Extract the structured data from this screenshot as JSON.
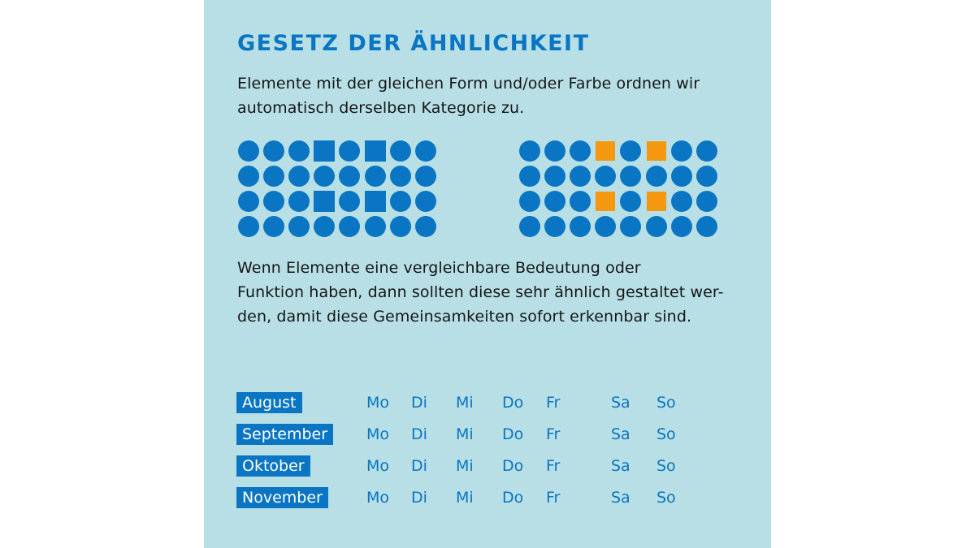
{
  "title": "Gesetz der Ähnlichkeit",
  "intro": {
    "line1": "Elemente mit der gleichen Form und/oder Farbe ordnen wir",
    "line2": "automatisch derselben Kategorie zu."
  },
  "colors": {
    "background": "#b7dfe5",
    "blue": "#0a75c2",
    "orange": "#f3980f",
    "text": "#161616"
  },
  "grids": [
    {
      "rows": [
        [
          {
            "shape": "circle",
            "color": "blue"
          },
          {
            "shape": "circle",
            "color": "blue"
          },
          {
            "shape": "circle",
            "color": "blue"
          },
          {
            "shape": "square",
            "color": "blue"
          },
          {
            "shape": "circle",
            "color": "blue"
          },
          {
            "shape": "square",
            "color": "blue"
          },
          {
            "shape": "circle",
            "color": "blue"
          },
          {
            "shape": "circle",
            "color": "blue"
          }
        ],
        [
          {
            "shape": "circle",
            "color": "blue"
          },
          {
            "shape": "circle",
            "color": "blue"
          },
          {
            "shape": "circle",
            "color": "blue"
          },
          {
            "shape": "circle",
            "color": "blue"
          },
          {
            "shape": "circle",
            "color": "blue"
          },
          {
            "shape": "circle",
            "color": "blue"
          },
          {
            "shape": "circle",
            "color": "blue"
          },
          {
            "shape": "circle",
            "color": "blue"
          }
        ],
        [
          {
            "shape": "circle",
            "color": "blue"
          },
          {
            "shape": "circle",
            "color": "blue"
          },
          {
            "shape": "circle",
            "color": "blue"
          },
          {
            "shape": "square",
            "color": "blue"
          },
          {
            "shape": "circle",
            "color": "blue"
          },
          {
            "shape": "square",
            "color": "blue"
          },
          {
            "shape": "circle",
            "color": "blue"
          },
          {
            "shape": "circle",
            "color": "blue"
          }
        ],
        [
          {
            "shape": "circle",
            "color": "blue"
          },
          {
            "shape": "circle",
            "color": "blue"
          },
          {
            "shape": "circle",
            "color": "blue"
          },
          {
            "shape": "circle",
            "color": "blue"
          },
          {
            "shape": "circle",
            "color": "blue"
          },
          {
            "shape": "circle",
            "color": "blue"
          },
          {
            "shape": "circle",
            "color": "blue"
          },
          {
            "shape": "circle",
            "color": "blue"
          }
        ]
      ]
    },
    {
      "rows": [
        [
          {
            "shape": "circle",
            "color": "blue"
          },
          {
            "shape": "circle",
            "color": "blue"
          },
          {
            "shape": "circle",
            "color": "blue"
          },
          {
            "shape": "square",
            "color": "orange"
          },
          {
            "shape": "circle",
            "color": "blue"
          },
          {
            "shape": "square",
            "color": "orange"
          },
          {
            "shape": "circle",
            "color": "blue"
          },
          {
            "shape": "circle",
            "color": "blue"
          }
        ],
        [
          {
            "shape": "circle",
            "color": "blue"
          },
          {
            "shape": "circle",
            "color": "blue"
          },
          {
            "shape": "circle",
            "color": "blue"
          },
          {
            "shape": "circle",
            "color": "blue"
          },
          {
            "shape": "circle",
            "color": "blue"
          },
          {
            "shape": "circle",
            "color": "blue"
          },
          {
            "shape": "circle",
            "color": "blue"
          },
          {
            "shape": "circle",
            "color": "blue"
          }
        ],
        [
          {
            "shape": "circle",
            "color": "blue"
          },
          {
            "shape": "circle",
            "color": "blue"
          },
          {
            "shape": "circle",
            "color": "blue"
          },
          {
            "shape": "square",
            "color": "orange"
          },
          {
            "shape": "circle",
            "color": "blue"
          },
          {
            "shape": "square",
            "color": "orange"
          },
          {
            "shape": "circle",
            "color": "blue"
          },
          {
            "shape": "circle",
            "color": "blue"
          }
        ],
        [
          {
            "shape": "circle",
            "color": "blue"
          },
          {
            "shape": "circle",
            "color": "blue"
          },
          {
            "shape": "circle",
            "color": "blue"
          },
          {
            "shape": "circle",
            "color": "blue"
          },
          {
            "shape": "circle",
            "color": "blue"
          },
          {
            "shape": "circle",
            "color": "blue"
          },
          {
            "shape": "circle",
            "color": "blue"
          },
          {
            "shape": "circle",
            "color": "blue"
          }
        ]
      ]
    }
  ],
  "body": {
    "line1": "Wenn Elemente eine vergleichbare Bedeutung oder",
    "line2": "Funktion haben, dann sollten diese sehr ähnlich gestaltet wer-",
    "line3": "den, damit diese Gemeinsamkeiten sofort erkennbar sind."
  },
  "calendar": {
    "days": [
      "Mo",
      "Di",
      "Mi",
      "Do",
      "Fr",
      "Sa",
      "So"
    ],
    "months": [
      "August",
      "September",
      "Oktober",
      "November"
    ]
  }
}
